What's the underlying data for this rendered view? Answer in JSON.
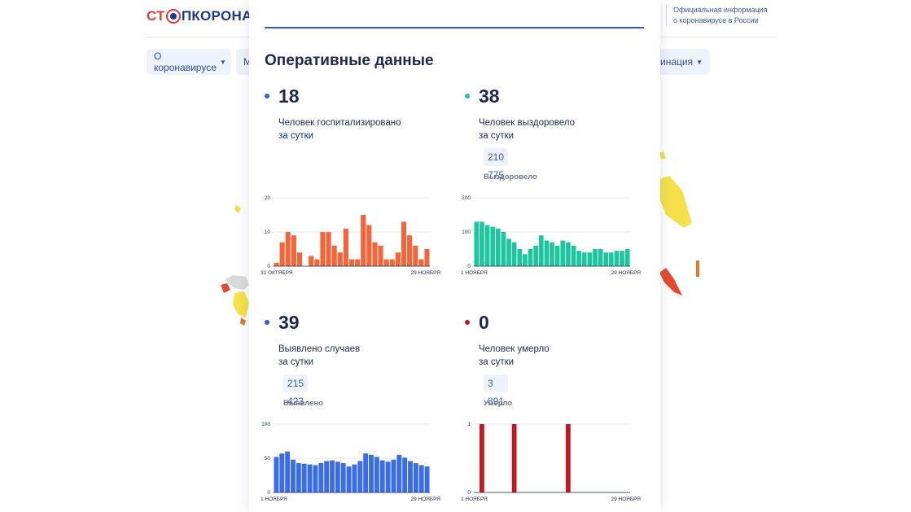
{
  "header": {
    "logo_part1": "СТ",
    "logo_part2": "ПКОРОНАВИ",
    "official_line1": "Официальная информация",
    "official_line2": "о коронавирусе в России"
  },
  "menu": {
    "item1": "О коронавирусе",
    "item2": "М",
    "item_right": "кцинация"
  },
  "panel": {
    "title": "Оперативные данные",
    "stats": [
      {
        "value": "18",
        "line1": "Человек госпитализировано",
        "line2": "за сутки",
        "color": "#3a5ccc"
      },
      {
        "value": "38",
        "line1": "Человек выздоровело",
        "line2": "за сутки",
        "total": "210 775",
        "total_label": "Выздоровело",
        "color": "#1cc7a0"
      },
      {
        "value": "39",
        "line1": "Выявлено случаев",
        "line2": "за сутки",
        "total": "215 423",
        "total_label": "Выявлено",
        "color": "#3a5ccc"
      },
      {
        "value": "0",
        "line1": "Человек умерло",
        "line2": "за сутки",
        "total": "3 891",
        "total_label": "Умерло",
        "color": "#c8141e"
      }
    ]
  },
  "chart_data": [
    {
      "type": "bar",
      "name": "hospitalized",
      "color": "#f4663a",
      "ylim": [
        0,
        20
      ],
      "yticks": [
        "0",
        "10",
        "20"
      ],
      "xlabel_start": "31 ОКТЯБРЯ",
      "xlabel_end": "29 НОЯБРЯ",
      "values": [
        1,
        7,
        10,
        9,
        4,
        0,
        3,
        2,
        10,
        10,
        6,
        4,
        11,
        2,
        2,
        15,
        12,
        7,
        6,
        2,
        2,
        4,
        13,
        9,
        6,
        2,
        5
      ]
    },
    {
      "type": "bar",
      "name": "recovered",
      "color": "#1cc7a0",
      "ylim": [
        0,
        200
      ],
      "yticks": [
        "0",
        "100",
        "200"
      ],
      "xlabel_start": "1 НОЯБРЯ",
      "xlabel_end": "29 НОЯБРЯ",
      "values": [
        130,
        130,
        120,
        115,
        110,
        100,
        80,
        70,
        50,
        35,
        50,
        60,
        90,
        75,
        70,
        60,
        75,
        70,
        60,
        45,
        40,
        40,
        50,
        50,
        40,
        40,
        45,
        45,
        50
      ]
    },
    {
      "type": "bar",
      "name": "detected",
      "color": "#3a6ee8",
      "ylim": [
        0,
        100
      ],
      "yticks": [
        "0",
        "50",
        "100"
      ],
      "xlabel_start": "1 НОЯБРЯ",
      "xlabel_end": "29 НОЯБРЯ",
      "values": [
        52,
        57,
        60,
        48,
        43,
        42,
        41,
        40,
        43,
        46,
        47,
        45,
        43,
        38,
        41,
        46,
        57,
        55,
        52,
        47,
        45,
        48,
        55,
        51,
        46,
        43,
        40,
        38
      ]
    },
    {
      "type": "bar",
      "name": "died",
      "color": "#c8141e",
      "ylim": [
        0,
        1
      ],
      "yticks": [
        "0",
        "1"
      ],
      "xlabel_start": "1 НОЯБРЯ",
      "xlabel_end": "29 НОЯБРЯ",
      "values": [
        0,
        1,
        0,
        0,
        0,
        0,
        0,
        1,
        0,
        0,
        0,
        0,
        0,
        0,
        0,
        0,
        0,
        1,
        0,
        0,
        0,
        0,
        0,
        0,
        0,
        0,
        0,
        0,
        0
      ]
    }
  ]
}
